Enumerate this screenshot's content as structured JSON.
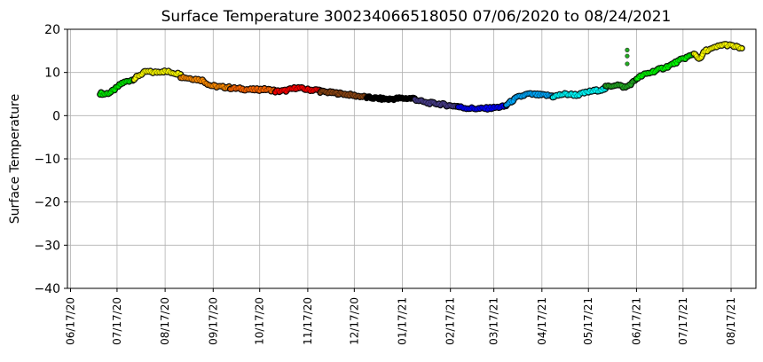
{
  "chart_data": {
    "type": "scatter",
    "title": "Surface Temperature 300234066518050  07/06/2020 to 08/24/2021",
    "xlabel": "",
    "ylabel": "Surface Temperature",
    "x_range": [
      "2020-06-15",
      "2021-09-02"
    ],
    "ylim": [
      -40,
      20
    ],
    "yticks": [
      20,
      10,
      0,
      -10,
      -20,
      -30,
      -40
    ],
    "yticks_labels": [
      "20",
      "10",
      "0",
      "−10",
      "−20",
      "−30",
      "−40"
    ],
    "xticks": [
      "2020-06-17",
      "2020-07-17",
      "2020-08-17",
      "2020-09-17",
      "2020-10-17",
      "2020-11-17",
      "2020-12-17",
      "2021-01-17",
      "2021-02-17",
      "2021-03-17",
      "2021-04-17",
      "2021-05-17",
      "2021-06-17",
      "2021-07-17",
      "2021-08-17"
    ],
    "xticks_labels": [
      "06/17/20",
      "07/17/20",
      "08/17/20",
      "09/17/20",
      "10/17/20",
      "11/17/20",
      "12/17/20",
      "01/17/21",
      "02/17/21",
      "03/17/21",
      "04/17/21",
      "05/17/21",
      "06/17/21",
      "07/17/21",
      "08/17/21"
    ],
    "grid": true,
    "legend": "none",
    "series": [
      {
        "color": "#00ee00",
        "x": [
          "2020-07-06",
          "2020-07-09",
          "2020-07-13",
          "2020-07-17",
          "2020-07-20",
          "2020-07-24",
          "2020-07-28"
        ],
        "y": [
          5.2,
          5.0,
          5.4,
          6.5,
          7.5,
          8.0,
          8.5
        ]
      },
      {
        "color": "#ffff00",
        "x": [
          "2020-07-28",
          "2020-08-01",
          "2020-08-05",
          "2020-08-10",
          "2020-08-15",
          "2020-08-20",
          "2020-08-27"
        ],
        "y": [
          8.5,
          9.5,
          10.2,
          10.0,
          10.3,
          10.1,
          9.6
        ]
      },
      {
        "color": "#ff8c00",
        "x": [
          "2020-08-27",
          "2020-09-03",
          "2020-09-10",
          "2020-09-15",
          "2020-09-20",
          "2020-09-28"
        ],
        "y": [
          9.0,
          8.6,
          8.2,
          7.0,
          6.7,
          6.5
        ]
      },
      {
        "color": "#ff6600",
        "x": [
          "2020-09-28",
          "2020-10-05",
          "2020-10-12",
          "2020-10-20",
          "2020-10-27"
        ],
        "y": [
          6.4,
          6.2,
          6.0,
          6.1,
          5.8
        ]
      },
      {
        "color": "#ff0000",
        "x": [
          "2020-10-27",
          "2020-11-03",
          "2020-11-10",
          "2020-11-17",
          "2020-11-25"
        ],
        "y": [
          5.6,
          5.8,
          6.5,
          6.0,
          5.9
        ]
      },
      {
        "color": "#8b4513",
        "x": [
          "2020-11-25",
          "2020-12-03",
          "2020-12-11",
          "2020-12-18",
          "2020-12-25"
        ],
        "y": [
          5.6,
          5.3,
          5.0,
          4.6,
          4.3
        ]
      },
      {
        "color": "#000000",
        "x": [
          "2020-12-25",
          "2021-01-01",
          "2021-01-08",
          "2021-01-15",
          "2021-01-25"
        ],
        "y": [
          4.2,
          4.0,
          3.8,
          4.0,
          4.0
        ]
      },
      {
        "color": "#483d8b",
        "x": [
          "2021-01-25",
          "2021-02-01",
          "2021-02-08",
          "2021-02-17",
          "2021-02-22"
        ],
        "y": [
          3.8,
          3.0,
          2.8,
          2.3,
          2.2
        ]
      },
      {
        "color": "#0000ff",
        "x": [
          "2021-02-22",
          "2021-03-01",
          "2021-03-08",
          "2021-03-17",
          "2021-03-25"
        ],
        "y": [
          2.0,
          1.7,
          1.6,
          1.8,
          2.2
        ]
      },
      {
        "color": "#00aaff",
        "x": [
          "2021-03-25",
          "2021-04-01",
          "2021-04-08",
          "2021-04-15",
          "2021-04-24"
        ],
        "y": [
          2.5,
          4.2,
          5.0,
          4.8,
          4.6
        ]
      },
      {
        "color": "#00ffff",
        "x": [
          "2021-04-24",
          "2021-05-01",
          "2021-05-10",
          "2021-05-17",
          "2021-05-28"
        ],
        "y": [
          4.4,
          5.0,
          4.8,
          5.5,
          6.2
        ]
      },
      {
        "color": "#22aa22",
        "x": [
          "2021-05-28",
          "2021-06-04",
          "2021-06-10",
          "2021-06-15",
          "2021-06-17"
        ],
        "y": [
          6.6,
          7.2,
          6.5,
          7.8,
          8.5
        ]
      },
      {
        "color": "#00ff00",
        "x": [
          "2021-06-17",
          "2021-06-22",
          "2021-06-30",
          "2021-07-08",
          "2021-07-16",
          "2021-07-24"
        ],
        "y": [
          8.6,
          9.5,
          10.5,
          11.5,
          13.0,
          14.2
        ]
      },
      {
        "color": "#ffff00",
        "x": [
          "2021-07-24",
          "2021-07-28",
          "2021-07-31",
          "2021-08-05",
          "2021-08-12",
          "2021-08-17",
          "2021-08-24"
        ],
        "y": [
          14.5,
          13.0,
          15.0,
          15.5,
          16.5,
          16.2,
          15.6
        ]
      }
    ],
    "outliers": [
      {
        "color": "#22aa22",
        "x": "2021-06-11",
        "y": 15.2
      },
      {
        "color": "#22aa22",
        "x": "2021-06-11",
        "y": 13.8
      },
      {
        "color": "#22aa22",
        "x": "2021-06-11",
        "y": 12.0
      }
    ]
  }
}
